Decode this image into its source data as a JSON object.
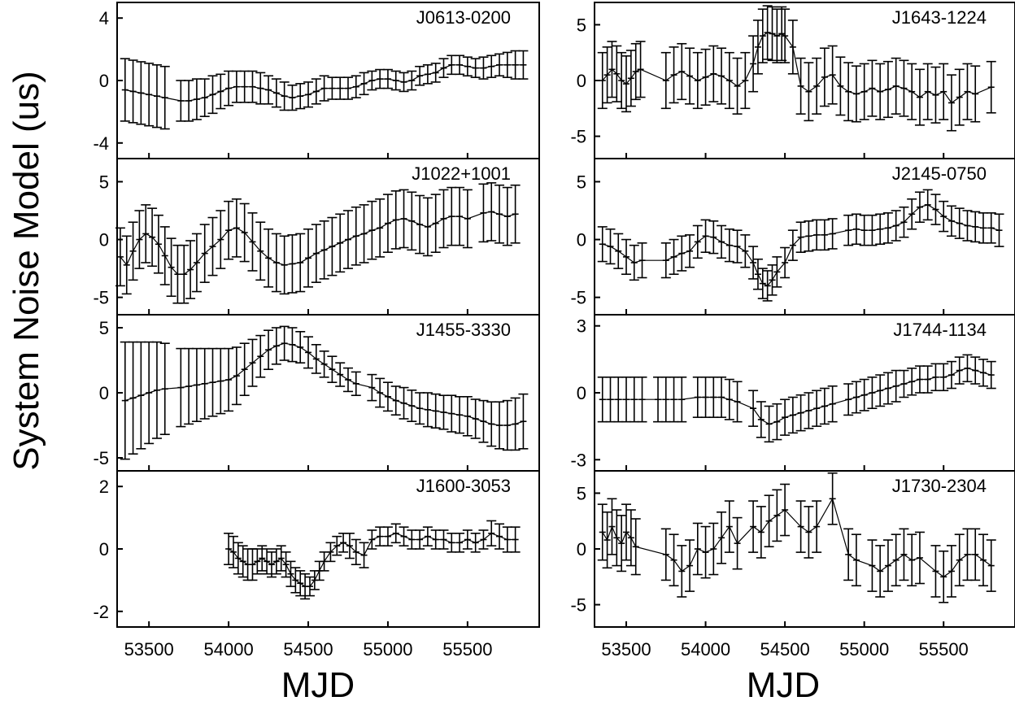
{
  "figure": {
    "ylabel": "System Noise Model (us)",
    "xlabel": "MJD",
    "xlim": [
      53300,
      55950
    ],
    "xticks": [
      53500,
      54000,
      54500,
      55000,
      55500
    ]
  },
  "chart_data": [
    {
      "type": "errorbar",
      "name": "J0613-0200",
      "column": "left",
      "ylim": [
        -5,
        5
      ],
      "yticks": [
        -4,
        0,
        4
      ],
      "x": [
        53350,
        53400,
        53450,
        53500,
        53550,
        53600,
        53700,
        53750,
        53800,
        53850,
        53900,
        53950,
        54000,
        54050,
        54100,
        54150,
        54200,
        54250,
        54300,
        54350,
        54400,
        54450,
        54500,
        54550,
        54600,
        54650,
        54700,
        54750,
        54800,
        54850,
        54900,
        54950,
        55000,
        55050,
        55100,
        55150,
        55200,
        55250,
        55300,
        55350,
        55400,
        55450,
        55500,
        55550,
        55600,
        55650,
        55700,
        55750,
        55800,
        55850
      ],
      "y": [
        -0.6,
        -0.7,
        -0.8,
        -0.9,
        -1.0,
        -1.1,
        -1.3,
        -1.3,
        -1.2,
        -1.1,
        -0.9,
        -0.7,
        -0.5,
        -0.4,
        -0.4,
        -0.4,
        -0.5,
        -0.6,
        -0.8,
        -1.0,
        -1.1,
        -1.0,
        -0.9,
        -0.7,
        -0.5,
        -0.5,
        -0.5,
        -0.5,
        -0.4,
        -0.2,
        0.0,
        0.1,
        0.1,
        0.0,
        -0.1,
        0.0,
        0.3,
        0.4,
        0.5,
        0.8,
        1.0,
        1.0,
        0.9,
        0.8,
        0.8,
        0.9,
        1.0,
        1.0,
        1.0,
        1.0
      ],
      "err": [
        2.0,
        2.0,
        2.0,
        2.0,
        2.0,
        2.0,
        1.3,
        1.3,
        1.3,
        1.2,
        1.2,
        1.1,
        1.1,
        1.0,
        1.0,
        1.0,
        1.0,
        0.9,
        0.9,
        0.9,
        0.8,
        0.8,
        0.8,
        0.8,
        0.8,
        0.7,
        0.7,
        0.7,
        0.7,
        0.7,
        0.6,
        0.6,
        0.6,
        0.6,
        0.6,
        0.6,
        0.6,
        0.6,
        0.6,
        0.6,
        0.6,
        0.6,
        0.6,
        0.6,
        0.7,
        0.7,
        0.7,
        0.8,
        0.9,
        0.9
      ]
    },
    {
      "type": "errorbar",
      "name": "J1022+1001",
      "column": "left",
      "ylim": [
        -6.5,
        7
      ],
      "yticks": [
        -5,
        0,
        5
      ],
      "x": [
        53320,
        53360,
        53400,
        53440,
        53480,
        53520,
        53560,
        53600,
        53640,
        53680,
        53720,
        53760,
        53800,
        53850,
        53900,
        53950,
        54000,
        54050,
        54100,
        54150,
        54200,
        54250,
        54300,
        54350,
        54400,
        54450,
        54500,
        54550,
        54600,
        54650,
        54700,
        54750,
        54800,
        54850,
        54900,
        54950,
        55000,
        55050,
        55100,
        55150,
        55200,
        55250,
        55300,
        55350,
        55400,
        55450,
        55500,
        55600,
        55650,
        55700,
        55750,
        55800
      ],
      "y": [
        -1.5,
        -2.2,
        -1.0,
        0.0,
        0.5,
        0.2,
        -0.4,
        -1.4,
        -2.4,
        -3.0,
        -3.0,
        -2.6,
        -2.0,
        -1.2,
        -0.6,
        0.0,
        0.8,
        1.0,
        0.6,
        -0.2,
        -1.0,
        -1.6,
        -2.0,
        -2.2,
        -2.1,
        -2.0,
        -1.6,
        -1.2,
        -0.9,
        -0.6,
        -0.3,
        0.0,
        0.3,
        0.5,
        0.8,
        1.0,
        1.4,
        1.7,
        1.8,
        1.6,
        1.3,
        1.1,
        1.4,
        1.8,
        2.0,
        2.0,
        1.8,
        2.3,
        2.4,
        2.2,
        2.0,
        2.2
      ]
    },
    {
      "type": "errorbar",
      "name": "J1455-3330",
      "column": "left",
      "ylim": [
        -6,
        6
      ],
      "yticks": [
        -5,
        0,
        5
      ],
      "x": [
        53350,
        53400,
        53450,
        53500,
        53550,
        53600,
        53700,
        53750,
        53800,
        53850,
        53900,
        53950,
        54000,
        54050,
        54100,
        54150,
        54200,
        54250,
        54300,
        54350,
        54400,
        54450,
        54500,
        54550,
        54600,
        54650,
        54700,
        54750,
        54800,
        54900,
        54950,
        55000,
        55050,
        55100,
        55150,
        55200,
        55250,
        55300,
        55350,
        55400,
        55450,
        55500,
        55550,
        55600,
        55650,
        55700,
        55750,
        55800,
        55850
      ],
      "y": [
        -0.6,
        -0.4,
        -0.2,
        0.0,
        0.2,
        0.3,
        0.4,
        0.5,
        0.6,
        0.7,
        0.8,
        0.9,
        1.0,
        1.3,
        1.8,
        2.3,
        2.8,
        3.3,
        3.6,
        3.8,
        3.7,
        3.5,
        3.1,
        2.6,
        2.2,
        1.8,
        1.4,
        1.0,
        0.7,
        0.4,
        0.0,
        -0.3,
        -0.6,
        -0.8,
        -1.0,
        -1.2,
        -1.3,
        -1.4,
        -1.5,
        -1.6,
        -1.7,
        -1.8,
        -2.0,
        -2.2,
        -2.4,
        -2.5,
        -2.5,
        -2.4,
        -2.2
      ],
      "err": [
        4.5,
        4.3,
        4.1,
        3.9,
        3.7,
        3.5,
        3.0,
        2.9,
        2.8,
        2.7,
        2.6,
        2.5,
        2.4,
        2.2,
        2.0,
        1.8,
        1.6,
        1.5,
        1.4,
        1.3,
        1.3,
        1.2,
        1.2,
        1.1,
        1.0,
        1.0,
        0.9,
        0.9,
        0.9,
        1.0,
        1.1,
        1.1,
        1.1,
        1.2,
        1.2,
        1.2,
        1.3,
        1.3,
        1.3,
        1.4,
        1.4,
        1.5,
        1.5,
        1.6,
        1.7,
        1.8,
        1.9,
        2.0,
        2.1
      ]
    },
    {
      "type": "errorbar",
      "name": "J1600-3053",
      "column": "left",
      "ylim": [
        -2.5,
        2.5
      ],
      "yticks": [
        -2,
        0,
        2
      ],
      "x": [
        54000,
        54030,
        54060,
        54090,
        54120,
        54150,
        54180,
        54210,
        54240,
        54270,
        54300,
        54330,
        54360,
        54390,
        54420,
        54450,
        54480,
        54510,
        54540,
        54570,
        54600,
        54640,
        54680,
        54720,
        54760,
        54800,
        54850,
        54900,
        54950,
        55000,
        55050,
        55100,
        55150,
        55200,
        55250,
        55300,
        55350,
        55400,
        55450,
        55500,
        55550,
        55600,
        55650,
        55700,
        55750,
        55800
      ],
      "y": [
        0.0,
        -0.1,
        -0.3,
        -0.4,
        -0.5,
        -0.5,
        -0.4,
        -0.3,
        -0.4,
        -0.5,
        -0.4,
        -0.3,
        -0.5,
        -0.8,
        -1.0,
        -1.1,
        -1.2,
        -1.2,
        -1.0,
        -0.7,
        -0.4,
        -0.1,
        0.1,
        0.2,
        0.1,
        -0.1,
        -0.2,
        0.3,
        0.4,
        0.4,
        0.5,
        0.4,
        0.3,
        0.3,
        0.4,
        0.3,
        0.3,
        0.2,
        0.2,
        0.3,
        0.2,
        0.3,
        0.5,
        0.4,
        0.3,
        0.3
      ],
      "err": [
        0.5,
        0.5,
        0.5,
        0.5,
        0.5,
        0.5,
        0.4,
        0.4,
        0.4,
        0.4,
        0.4,
        0.4,
        0.4,
        0.4,
        0.4,
        0.4,
        0.4,
        0.3,
        0.3,
        0.3,
        0.3,
        0.3,
        0.3,
        0.3,
        0.4,
        0.4,
        0.4,
        0.3,
        0.3,
        0.3,
        0.3,
        0.3,
        0.3,
        0.3,
        0.3,
        0.3,
        0.3,
        0.3,
        0.3,
        0.3,
        0.3,
        0.3,
        0.4,
        0.4,
        0.4,
        0.4
      ]
    },
    {
      "type": "errorbar",
      "name": "J1643-1224",
      "column": "right",
      "ylim": [
        -7,
        7
      ],
      "yticks": [
        -5,
        0,
        5
      ],
      "x": [
        53350,
        53380,
        53410,
        53440,
        53470,
        53500,
        53530,
        53560,
        53590,
        53750,
        53800,
        53850,
        53900,
        53950,
        54000,
        54050,
        54100,
        54150,
        54200,
        54250,
        54300,
        54330,
        54360,
        54390,
        54420,
        54450,
        54480,
        54500,
        54550,
        54600,
        54650,
        54700,
        54750,
        54800,
        54850,
        54900,
        54950,
        55000,
        55050,
        55100,
        55150,
        55200,
        55250,
        55300,
        55350,
        55400,
        55450,
        55500,
        55550,
        55600,
        55650,
        55700,
        55800
      ],
      "y": [
        0.0,
        0.5,
        1.0,
        0.6,
        0.0,
        -0.3,
        0.2,
        0.8,
        1.0,
        0.0,
        0.5,
        0.8,
        0.4,
        0.0,
        0.3,
        0.6,
        0.4,
        0.0,
        -0.5,
        0.0,
        1.5,
        3.0,
        4.0,
        4.3,
        4.2,
        4.0,
        4.2,
        4.0,
        3.0,
        -0.5,
        -1.0,
        -0.5,
        0.3,
        0.5,
        -0.5,
        -1.0,
        -1.2,
        -1.0,
        -0.7,
        -1.0,
        -0.8,
        -0.5,
        -0.7,
        -1.0,
        -1.5,
        -1.0,
        -1.3,
        -1.0,
        -2.0,
        -1.5,
        -1.0,
        -1.2,
        -0.6
      ],
      "err": [
        2.5,
        2.5,
        2.5,
        2.5,
        2.5,
        2.5,
        2.5,
        2.5,
        2.5,
        2.5,
        2.5,
        2.5,
        2.5,
        2.5,
        2.5,
        2.5,
        2.5,
        2.5,
        2.5,
        2.5,
        2.5,
        2.4,
        2.4,
        2.4,
        2.4,
        2.4,
        2.4,
        2.4,
        2.4,
        2.5,
        2.6,
        2.5,
        2.6,
        2.6,
        2.6,
        2.6,
        2.5,
        2.5,
        2.5,
        2.5,
        2.5,
        2.5,
        2.5,
        2.5,
        2.5,
        2.5,
        2.5,
        2.5,
        2.5,
        2.5,
        2.5,
        2.5,
        2.3
      ]
    },
    {
      "type": "errorbar",
      "name": "J2145-0750",
      "column": "right",
      "ylim": [
        -6.5,
        7
      ],
      "yticks": [
        -5,
        0,
        5
      ],
      "x": [
        53350,
        53400,
        53450,
        53500,
        53550,
        53600,
        53750,
        53800,
        53850,
        53900,
        53950,
        54000,
        54050,
        54100,
        54150,
        54200,
        54250,
        54300,
        54330,
        54360,
        54390,
        54420,
        54450,
        54500,
        54550,
        54600,
        54650,
        54700,
        54750,
        54800,
        54900,
        54950,
        55000,
        55050,
        55100,
        55150,
        55200,
        55250,
        55300,
        55350,
        55400,
        55450,
        55500,
        55550,
        55600,
        55650,
        55700,
        55750,
        55800,
        55850
      ],
      "y": [
        -0.4,
        -0.6,
        -1.0,
        -1.5,
        -2.0,
        -1.8,
        -1.8,
        -1.5,
        -1.2,
        -1.0,
        -0.2,
        0.3,
        0.2,
        -0.2,
        -0.5,
        -0.6,
        -1.0,
        -2.0,
        -3.0,
        -3.8,
        -4.0,
        -3.5,
        -2.8,
        -2.0,
        -0.5,
        0.2,
        0.3,
        0.4,
        0.4,
        0.5,
        0.8,
        0.9,
        0.8,
        0.8,
        0.9,
        1.0,
        1.2,
        1.5,
        2.2,
        2.8,
        3.0,
        2.6,
        2.0,
        1.6,
        1.4,
        1.2,
        1.1,
        1.0,
        1.0,
        0.8
      ],
      "err": [
        1.5,
        1.5,
        1.5,
        1.5,
        1.5,
        1.5,
        1.5,
        1.5,
        1.5,
        1.4,
        1.4,
        1.4,
        1.4,
        1.4,
        1.4,
        1.4,
        1.4,
        1.4,
        1.3,
        1.3,
        1.3,
        1.3,
        1.3,
        1.3,
        1.3,
        1.3,
        1.3,
        1.3,
        1.3,
        1.3,
        1.3,
        1.3,
        1.3,
        1.3,
        1.3,
        1.3,
        1.3,
        1.3,
        1.3,
        1.3,
        1.3,
        1.3,
        1.3,
        1.3,
        1.3,
        1.3,
        1.3,
        1.3,
        1.3,
        1.4
      ]
    },
    {
      "type": "errorbar",
      "name": "J1744-1134",
      "column": "right",
      "ylim": [
        -3.5,
        3.5
      ],
      "yticks": [
        -3,
        0,
        3
      ],
      "x": [
        53350,
        53400,
        53450,
        53500,
        53550,
        53600,
        53700,
        53750,
        53800,
        53850,
        53950,
        54000,
        54050,
        54100,
        54150,
        54200,
        54300,
        54350,
        54400,
        54450,
        54500,
        54550,
        54600,
        54650,
        54700,
        54750,
        54800,
        54900,
        54950,
        55000,
        55050,
        55100,
        55150,
        55200,
        55250,
        55300,
        55350,
        55400,
        55450,
        55500,
        55550,
        55600,
        55650,
        55700,
        55750,
        55800
      ],
      "y": [
        -0.3,
        -0.3,
        -0.3,
        -0.3,
        -0.3,
        -0.3,
        -0.3,
        -0.3,
        -0.3,
        -0.3,
        -0.2,
        -0.2,
        -0.2,
        -0.2,
        -0.3,
        -0.4,
        -0.7,
        -1.2,
        -1.4,
        -1.3,
        -1.1,
        -1.0,
        -0.9,
        -0.8,
        -0.7,
        -0.6,
        -0.5,
        -0.3,
        -0.2,
        -0.1,
        0.0,
        0.1,
        0.2,
        0.3,
        0.4,
        0.5,
        0.6,
        0.6,
        0.7,
        0.7,
        0.8,
        1.0,
        1.1,
        1.0,
        0.9,
        0.8
      ],
      "err": [
        1.0,
        1.0,
        1.0,
        1.0,
        1.0,
        1.0,
        1.0,
        1.0,
        1.0,
        1.0,
        0.9,
        0.9,
        0.9,
        0.9,
        0.9,
        0.9,
        0.8,
        0.8,
        0.8,
        0.8,
        0.8,
        0.8,
        0.8,
        0.8,
        0.8,
        0.8,
        0.8,
        0.7,
        0.7,
        0.7,
        0.7,
        0.7,
        0.7,
        0.7,
        0.6,
        0.6,
        0.6,
        0.6,
        0.6,
        0.6,
        0.6,
        0.6,
        0.6,
        0.6,
        0.6,
        0.6
      ]
    },
    {
      "type": "errorbar",
      "name": "J1730-2304",
      "column": "right",
      "ylim": [
        -7,
        7
      ],
      "yticks": [
        -5,
        0,
        5
      ],
      "x": [
        53350,
        53380,
        53410,
        53440,
        53470,
        53500,
        53530,
        53560,
        53750,
        53800,
        53850,
        53900,
        53950,
        54000,
        54050,
        54100,
        54150,
        54200,
        54300,
        54350,
        54400,
        54450,
        54500,
        54600,
        54650,
        54700,
        54800,
        54900,
        54950,
        55050,
        55100,
        55150,
        55200,
        55250,
        55300,
        55350,
        55450,
        55500,
        55550,
        55600,
        55650,
        55700,
        55750,
        55800
      ],
      "y": [
        1.5,
        0.8,
        2.0,
        1.0,
        0.5,
        1.5,
        1.0,
        0.2,
        -0.5,
        -1.0,
        -2.0,
        -1.5,
        0.0,
        -0.3,
        0.0,
        1.0,
        2.0,
        0.5,
        2.0,
        1.5,
        2.5,
        3.0,
        3.5,
        2.0,
        1.5,
        2.0,
        4.5,
        -0.5,
        -1.0,
        -1.5,
        -2.0,
        -1.5,
        -1.0,
        -0.5,
        -1.0,
        -0.8,
        -2.0,
        -2.5,
        -2.0,
        -1.0,
        -0.5,
        -0.5,
        -1.0,
        -1.5
      ],
      "err": [
        2.5,
        2.5,
        2.5,
        2.5,
        2.5,
        2.5,
        2.5,
        2.5,
        2.3,
        2.3,
        2.3,
        2.3,
        2.3,
        2.3,
        2.3,
        2.3,
        2.3,
        2.3,
        2.3,
        2.3,
        2.3,
        2.3,
        2.3,
        2.3,
        2.3,
        2.3,
        2.3,
        2.3,
        2.3,
        2.3,
        2.3,
        2.3,
        2.3,
        2.3,
        2.3,
        2.3,
        2.3,
        2.3,
        2.3,
        2.3,
        2.3,
        2.3,
        2.3,
        2.3
      ]
    }
  ]
}
